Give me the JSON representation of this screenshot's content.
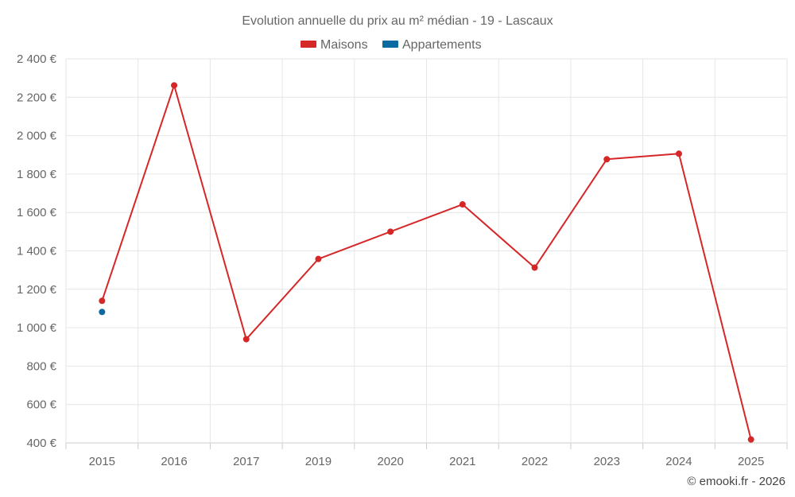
{
  "chart_data": {
    "type": "line",
    "title": "Evolution annuelle du prix au m² médian - 19 - Lascaux",
    "categories": [
      "2015",
      "2016",
      "2017",
      "2019",
      "2020",
      "2021",
      "2022",
      "2023",
      "2024",
      "2025"
    ],
    "series": [
      {
        "name": "Maisons",
        "color": "#d62728",
        "values": [
          1140,
          2262,
          940,
          1358,
          1500,
          1642,
          1313,
          1877,
          1906,
          418
        ]
      },
      {
        "name": "Appartements",
        "color": "#0b6aa2",
        "values": [
          1082,
          null,
          null,
          null,
          null,
          null,
          null,
          null,
          null,
          null
        ]
      }
    ],
    "ylim": [
      400,
      2400
    ],
    "yticks": [
      400,
      600,
      800,
      1000,
      1200,
      1400,
      1600,
      1800,
      2000,
      2200,
      2400
    ],
    "ytick_labels": [
      "400 €",
      "600 €",
      "800 €",
      "1 000 €",
      "1 200 €",
      "1 400 €",
      "1 600 €",
      "1 800 €",
      "2 000 €",
      "2 200 €",
      "2 400 €"
    ],
    "xlabel": "",
    "ylabel": "",
    "grid": true,
    "legend_position": "top-center"
  },
  "credit": "© emooki.fr - 2026"
}
